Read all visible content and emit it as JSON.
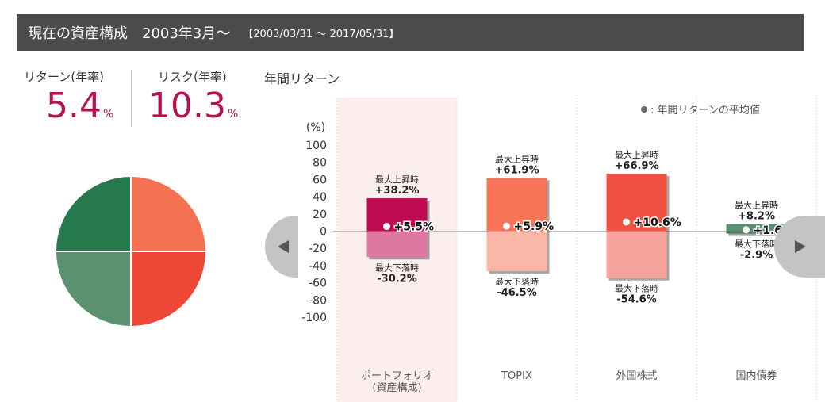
{
  "header": {
    "title": "現在の資産構成",
    "period": "2003年3月〜",
    "range": "【2003/03/31 〜 2017/05/31】"
  },
  "metrics": {
    "return_label": "リターン(年率)",
    "return_value": "5.4",
    "risk_label": "リスク(年率)",
    "risk_value": "10.3",
    "unit": "%"
  },
  "section_title": "年間リターン",
  "colors": {
    "accent": "#b5134f",
    "pie": [
      "#f47152",
      "#ef4737",
      "#5c9170",
      "#277a4e"
    ]
  },
  "pie": {
    "slices": [
      25,
      25,
      25,
      25
    ]
  },
  "chart_data": {
    "type": "bar",
    "title": "",
    "legend": "● : 年間リターンの平均値",
    "ylabel": "(%)",
    "ylim": [
      -100,
      100
    ],
    "yticks": [
      100,
      80,
      60,
      40,
      20,
      0,
      -20,
      -40,
      -60,
      -80,
      -100
    ],
    "max_label": "最大上昇時",
    "min_label": "最大下落時",
    "categories": [
      {
        "name": "ポートフォリオ",
        "sub": "(資産構成)",
        "max": 38.2,
        "min": -30.2,
        "avg": 5.5,
        "max_text": "+38.2%",
        "min_text": "-30.2%",
        "avg_text": "+5.5%",
        "pos_color": "#bf0b52",
        "neg_color": "#de78a1",
        "highlight": true
      },
      {
        "name": "TOPIX",
        "sub": "",
        "max": 61.9,
        "min": -46.5,
        "avg": 5.9,
        "max_text": "+61.9%",
        "min_text": "-46.5%",
        "avg_text": "+5.9%",
        "pos_color": "#f77459",
        "neg_color": "#fab6a6",
        "highlight": false
      },
      {
        "name": "外国株式",
        "sub": "",
        "max": 66.9,
        "min": -54.6,
        "avg": 10.6,
        "max_text": "+66.9%",
        "min_text": "-54.6%",
        "avg_text": "+10.6%",
        "pos_color": "#ef5040",
        "neg_color": "#f6a39b",
        "highlight": false
      },
      {
        "name": "国内債券",
        "sub": "",
        "max": 8.2,
        "min": -2.9,
        "avg": 1.6,
        "max_text": "+8.2%",
        "min_text": "-2.9%",
        "avg_text": "+1.6%",
        "pos_color": "#589071",
        "neg_color": "#4f7d63",
        "highlight": false
      }
    ]
  },
  "nav": {
    "prev_icon": "chevron-left-icon",
    "next_icon": "chevron-right-icon"
  }
}
